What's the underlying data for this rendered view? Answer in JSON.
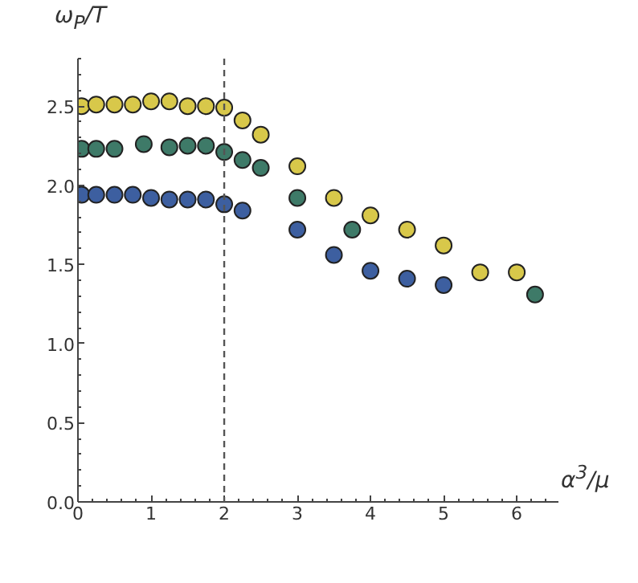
{
  "chart_data": {
    "type": "scatter",
    "ylabel": "ω$_{P}$/T",
    "xlabel": "α$^{3}$/μ",
    "xlim": [
      0,
      6.57
    ],
    "ylim": [
      0,
      2.8
    ],
    "xticks": [
      0,
      1,
      2,
      3,
      4,
      5,
      6
    ],
    "yticks": [
      {
        "value": 0,
        "label": "0.0"
      },
      0.5,
      {
        "value": 1,
        "label": "1.0"
      },
      1.5,
      {
        "value": 2,
        "label": "2.0"
      },
      2.5
    ],
    "grid": false,
    "marker": "circle",
    "ref_lines": [
      {
        "axis": "x",
        "value": 2,
        "color": "#555555",
        "line_style": "dashed"
      }
    ],
    "series": [
      {
        "color": "#d8c84a",
        "x": [
          0.05,
          0.25,
          0.5,
          0.75,
          1,
          1.25,
          1.5,
          1.75,
          2,
          2.25,
          2.5,
          3,
          3.5,
          4,
          4.5,
          5,
          5.5,
          6
        ],
        "values": [
          2.5,
          2.51,
          2.51,
          2.51,
          2.53,
          2.53,
          2.5,
          2.5,
          2.49,
          2.41,
          2.32,
          2.12,
          1.92,
          1.81,
          1.72,
          1.62,
          1.45,
          1.45
        ]
      },
      {
        "color": "#3e7a68",
        "x": [
          0.05,
          0.25,
          0.5,
          0.9,
          1.25,
          1.5,
          1.75,
          2,
          2.25,
          2.5,
          3,
          3.75,
          6.25
        ],
        "values": [
          2.23,
          2.23,
          2.23,
          2.26,
          2.24,
          2.25,
          2.25,
          2.21,
          2.16,
          2.11,
          1.92,
          1.72,
          1.31
        ]
      },
      {
        "color": "#3d5fa0",
        "x": [
          0.05,
          0.25,
          0.5,
          0.75,
          1,
          1.25,
          1.5,
          1.75,
          2,
          2.25,
          3,
          3.5,
          4,
          4.5,
          5
        ],
        "values": [
          1.94,
          1.94,
          1.94,
          1.94,
          1.92,
          1.91,
          1.91,
          1.91,
          1.88,
          1.84,
          1.72,
          1.56,
          1.46,
          1.41,
          1.37
        ]
      }
    ]
  }
}
